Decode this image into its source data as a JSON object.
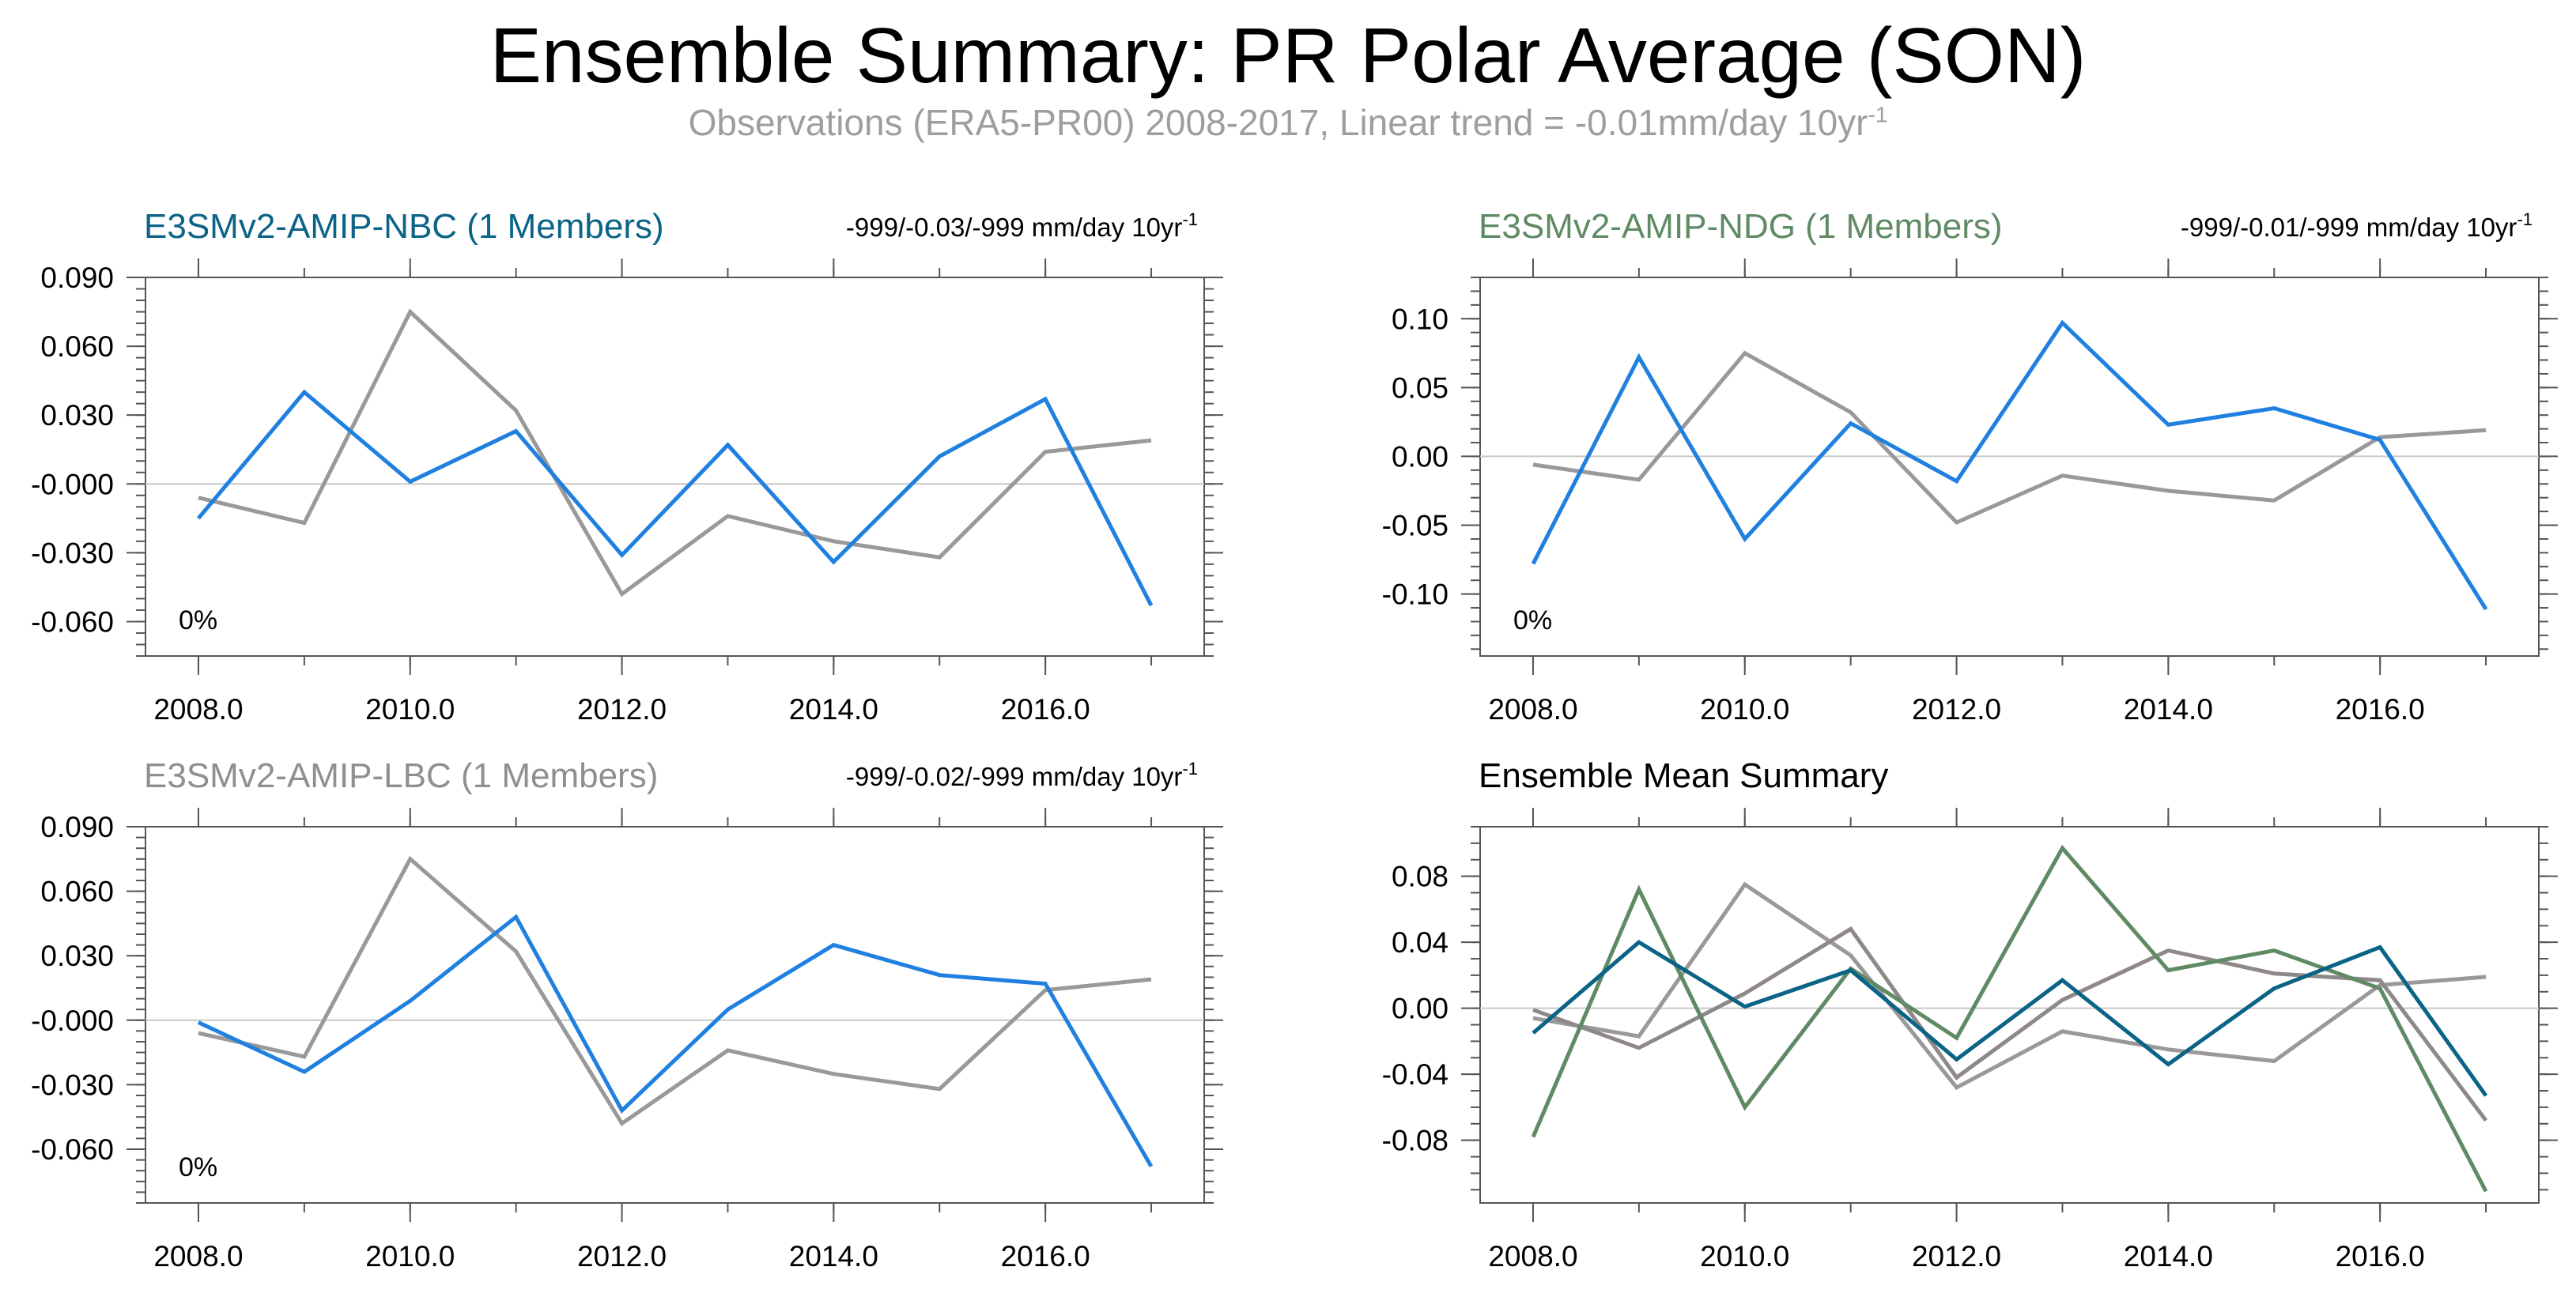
{
  "title": "Ensemble Summary: PR Polar Average (SON)",
  "subtitle": {
    "text": "Observations (ERA5-PR00) 2008-2017, Linear trend = -0.01mm/day 10yr",
    "superscript": "-1"
  },
  "colors": {
    "observations": "#999999",
    "nbc": "#1f80e0",
    "ndg": "#1f80e0",
    "lbc": "#1f80e0",
    "nbc_title": "#0b6386",
    "ndg_title": "#5f8a64",
    "lbc_title": "#8f8f8f",
    "mean_nbc": "#0b6386",
    "mean_ndg": "#5f8a64",
    "mean_lbc": "#8f8888",
    "zero_line": "#c8c8c8"
  },
  "chart_data": [
    {
      "id": "nbc",
      "type": "line",
      "title": "E3SMv2-AMIP-NBC (1 Members)",
      "trend_text": "-999/-0.03/-999 mm/day 10yr",
      "trend_sup": "-1",
      "percent_label": "0%",
      "ylim": [
        -0.075,
        0.09
      ],
      "xlim": [
        2007.5,
        2017.5
      ],
      "yticks": [
        0.09,
        0.06,
        0.03,
        0.0,
        -0.03,
        -0.06
      ],
      "ytick_labels": [
        "0.090",
        "0.060",
        "0.030",
        "-0.000",
        "-0.030",
        "-0.060"
      ],
      "xticks": [
        2008,
        2010,
        2012,
        2014,
        2016
      ],
      "xtick_labels": [
        "2008.0",
        "2010.0",
        "2012.0",
        "2014.0",
        "2016.0"
      ],
      "x": [
        2008,
        2009,
        2010,
        2011,
        2012,
        2013,
        2014,
        2015,
        2016,
        2017
      ],
      "series": [
        {
          "name": "Observations (ERA5-PR00)",
          "role": "observations",
          "values": [
            -0.006,
            -0.017,
            0.075,
            0.032,
            -0.048,
            -0.014,
            -0.025,
            -0.032,
            0.014,
            0.019
          ]
        },
        {
          "name": "E3SMv2-AMIP-NBC",
          "role": "nbc",
          "values": [
            -0.015,
            0.04,
            0.001,
            0.023,
            -0.031,
            0.017,
            -0.034,
            0.012,
            0.037,
            -0.053
          ]
        }
      ]
    },
    {
      "id": "ndg",
      "type": "line",
      "title": "E3SMv2-AMIP-NDG (1 Members)",
      "trend_text": "-999/-0.01/-999 mm/day 10yr",
      "trend_sup": "-1",
      "percent_label": "0%",
      "ylim": [
        -0.145,
        0.13
      ],
      "xlim": [
        2007.5,
        2017.5
      ],
      "yticks": [
        0.1,
        0.05,
        0.0,
        -0.05,
        -0.1
      ],
      "ytick_labels": [
        "0.10",
        "0.05",
        "0.00",
        "-0.05",
        "-0.10"
      ],
      "xticks": [
        2008,
        2010,
        2012,
        2014,
        2016
      ],
      "xtick_labels": [
        "2008.0",
        "2010.0",
        "2012.0",
        "2014.0",
        "2016.0"
      ],
      "x": [
        2008,
        2009,
        2010,
        2011,
        2012,
        2013,
        2014,
        2015,
        2016,
        2017
      ],
      "series": [
        {
          "name": "Observations (ERA5-PR00)",
          "role": "observations",
          "values": [
            -0.006,
            -0.017,
            0.075,
            0.032,
            -0.048,
            -0.014,
            -0.025,
            -0.032,
            0.014,
            0.019
          ]
        },
        {
          "name": "E3SMv2-AMIP-NDG",
          "role": "ndg",
          "values": [
            -0.078,
            0.072,
            -0.06,
            0.024,
            -0.018,
            0.097,
            0.023,
            0.035,
            0.012,
            -0.111
          ]
        }
      ]
    },
    {
      "id": "lbc",
      "type": "line",
      "title": "E3SMv2-AMIP-LBC (1 Members)",
      "trend_text": "-999/-0.02/-999 mm/day 10yr",
      "trend_sup": "-1",
      "percent_label": "0%",
      "ylim": [
        -0.085,
        0.09
      ],
      "xlim": [
        2007.5,
        2017.5
      ],
      "yticks": [
        0.09,
        0.06,
        0.03,
        0.0,
        -0.03,
        -0.06
      ],
      "ytick_labels": [
        "0.090",
        "0.060",
        "0.030",
        "-0.000",
        "-0.030",
        "-0.060"
      ],
      "xticks": [
        2008,
        2010,
        2012,
        2014,
        2016
      ],
      "xtick_labels": [
        "2008.0",
        "2010.0",
        "2012.0",
        "2014.0",
        "2016.0"
      ],
      "x": [
        2008,
        2009,
        2010,
        2011,
        2012,
        2013,
        2014,
        2015,
        2016,
        2017
      ],
      "series": [
        {
          "name": "Observations (ERA5-PR00)",
          "role": "observations",
          "values": [
            -0.006,
            -0.017,
            0.075,
            0.032,
            -0.048,
            -0.014,
            -0.025,
            -0.032,
            0.014,
            0.019
          ]
        },
        {
          "name": "E3SMv2-AMIP-LBC",
          "role": "lbc",
          "values": [
            -0.001,
            -0.024,
            0.009,
            0.048,
            -0.042,
            0.005,
            0.035,
            0.021,
            0.017,
            -0.068
          ]
        }
      ]
    },
    {
      "id": "mean",
      "type": "line",
      "title": "Ensemble Mean Summary",
      "ylim": [
        -0.118,
        0.11
      ],
      "xlim": [
        2007.5,
        2017.5
      ],
      "yticks": [
        0.08,
        0.04,
        0.0,
        -0.04,
        -0.08
      ],
      "ytick_labels": [
        "0.08",
        "0.04",
        "0.00",
        "-0.04",
        "-0.08"
      ],
      "xticks": [
        2008,
        2010,
        2012,
        2014,
        2016
      ],
      "xtick_labels": [
        "2008.0",
        "2010.0",
        "2012.0",
        "2014.0",
        "2016.0"
      ],
      "x": [
        2008,
        2009,
        2010,
        2011,
        2012,
        2013,
        2014,
        2015,
        2016,
        2017
      ],
      "series": [
        {
          "name": "Observations (ERA5-PR00)",
          "role": "observations",
          "values": [
            -0.006,
            -0.017,
            0.075,
            0.032,
            -0.048,
            -0.014,
            -0.025,
            -0.032,
            0.014,
            0.019
          ]
        },
        {
          "name": "E3SMv2-AMIP-LBC",
          "role": "mean_lbc",
          "values": [
            -0.001,
            -0.024,
            0.009,
            0.048,
            -0.042,
            0.005,
            0.035,
            0.021,
            0.017,
            -0.068
          ]
        },
        {
          "name": "E3SMv2-AMIP-NDG",
          "role": "mean_ndg",
          "values": [
            -0.078,
            0.072,
            -0.06,
            0.024,
            -0.018,
            0.097,
            0.023,
            0.035,
            0.012,
            -0.111
          ]
        },
        {
          "name": "E3SMv2-AMIP-NBC",
          "role": "mean_nbc",
          "values": [
            -0.015,
            0.04,
            0.001,
            0.023,
            -0.031,
            0.017,
            -0.034,
            0.012,
            0.037,
            -0.053
          ]
        }
      ]
    }
  ]
}
